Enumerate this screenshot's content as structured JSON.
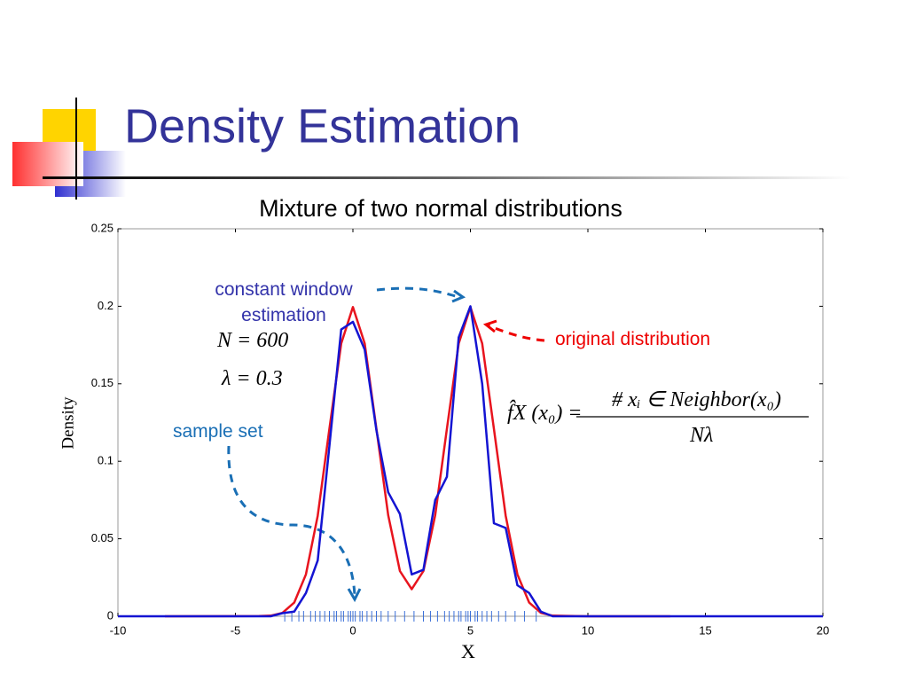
{
  "slide_title": "Density Estimation",
  "chart_data": {
    "type": "line",
    "title": "Mixture of two normal distributions",
    "xlabel": "X",
    "ylabel": "Density",
    "x": [
      -10,
      -8,
      -4,
      -3.5,
      -3,
      -2.5,
      -2,
      -1.5,
      -1,
      -0.5,
      0,
      0.5,
      1,
      1.5,
      2,
      2.5,
      3,
      3.5,
      4,
      4.5,
      5,
      5.5,
      6,
      6.5,
      7,
      7.5,
      8,
      8.5,
      10,
      13.5,
      20
    ],
    "series": [
      {
        "name": "original distribution",
        "color": "#e8141e",
        "values": [
          null,
          0,
          0.0001,
          0.0004,
          0.0022,
          0.0088,
          0.027,
          0.0648,
          0.121,
          0.176,
          0.1995,
          0.176,
          0.121,
          0.0652,
          0.0292,
          0.0175,
          0.0292,
          0.0652,
          0.121,
          0.176,
          0.1995,
          0.176,
          0.121,
          0.0648,
          0.027,
          0.0088,
          0.0022,
          0.0004,
          0,
          0,
          null
        ]
      },
      {
        "name": "constant window estimation",
        "color": "#1414d2",
        "values": [
          0,
          0,
          0,
          0,
          0.002,
          0.003,
          0.015,
          0.036,
          0.11,
          0.185,
          0.19,
          0.172,
          0.12,
          0.08,
          0.066,
          0.027,
          0.03,
          0.075,
          0.09,
          0.18,
          0.2,
          0.15,
          0.06,
          0.057,
          0.02,
          0.015,
          0.003,
          0,
          0,
          0,
          0
        ]
      }
    ],
    "samples": [
      -2.9,
      -2.6,
      -2.3,
      -2.1,
      -1.8,
      -1.6,
      -1.4,
      -1.2,
      -1.0,
      -0.8,
      -0.7,
      -0.5,
      -0.4,
      -0.2,
      -0.1,
      0,
      0.1,
      0.3,
      0.4,
      0.6,
      0.8,
      1.0,
      1.2,
      1.5,
      1.8,
      2.2,
      2.6,
      3.0,
      3.3,
      3.6,
      3.9,
      4.1,
      4.3,
      4.5,
      4.6,
      4.8,
      4.9,
      5.0,
      5.2,
      5.3,
      5.5,
      5.7,
      5.9,
      6.2,
      6.5,
      6.9,
      7.3,
      7.8
    ],
    "sample_color": "#3a6fd8",
    "xlim": [
      -10,
      20
    ],
    "xticks": [
      -10,
      -5,
      0,
      5,
      10,
      15,
      20
    ],
    "ylim": [
      0,
      0.25
    ],
    "yticks": [
      0,
      0.05,
      0.1,
      0.15,
      0.2,
      0.25
    ],
    "annotations": {
      "sample_set": "sample set",
      "n": "N = 600",
      "lambda": "λ = 0.3",
      "formula_lhs": "f̂X (x₀) =",
      "formula_num": "# xᵢ ∈ Neighbor(x₀)",
      "formula_den": "Nλ"
    }
  }
}
